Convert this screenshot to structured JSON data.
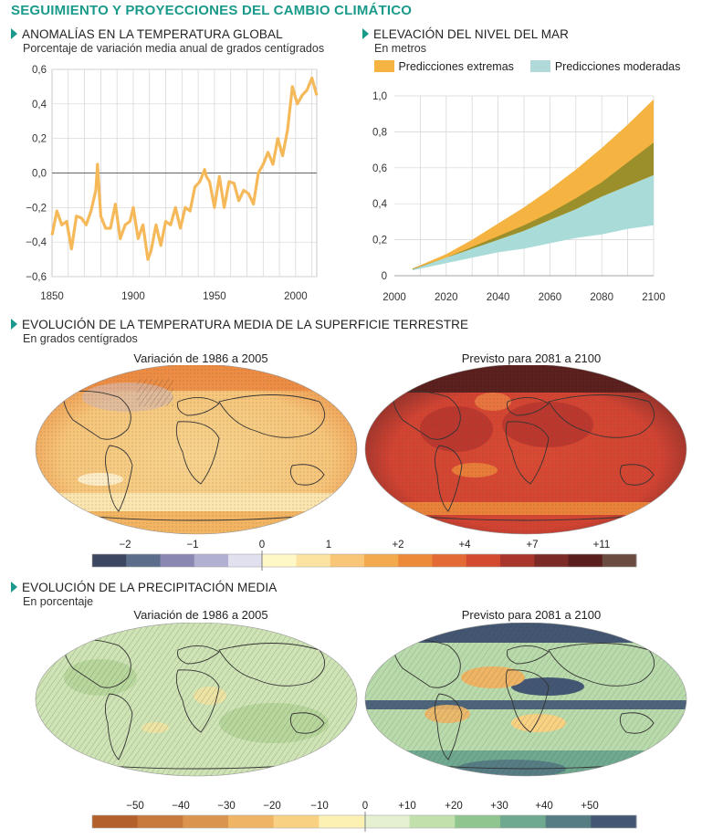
{
  "header": {
    "title": "SEGUIMIENTO Y PROYECCIONES DEL CAMBIO CLIMÁTICO"
  },
  "sections": {
    "temp_global": {
      "title": "ANOMALÍAS EN LA TEMPERATURA GLOBAL",
      "subtitle": "Porcentaje de variación media anual de grados centígrados"
    },
    "sea_level": {
      "title": "ELEVACIÓN DEL NIVEL DEL MAR",
      "subtitle": "En metros"
    },
    "surface_temp": {
      "title": "EVOLUCIÓN DE LA TEMPERATURA MEDIA DE LA SUPERFICIE TERRESTRE",
      "subtitle": "En grados centígrados",
      "map_left_title": "Variación de 1986 a 2005",
      "map_right_title": "Previsto para 2081 a 2100"
    },
    "precip": {
      "title": "EVOLUCIÓN DE LA PRECIPITACIÓN MEDIA",
      "subtitle": "En porcentaje",
      "map_left_title": "Variación de 1986 a 2005",
      "map_right_title": "Previsto para 2081 a 2100"
    }
  },
  "colors": {
    "accent": "#1a9a8a",
    "temp_line": "#f5b95a",
    "extreme": "#f5b342",
    "moderate": "#a9dcd9",
    "overlap": "#9a8f2a"
  },
  "chart_data": [
    {
      "id": "temp_anomalies",
      "type": "line",
      "xlim": [
        1850,
        2013
      ],
      "ylim": [
        -0.6,
        0.6
      ],
      "xticks": [
        "1850",
        "1900",
        "1950",
        "2000"
      ],
      "yticks": [
        "0,6",
        "0,4",
        "0,2",
        "0,0",
        "−0,2",
        "−0,4",
        "−0,6"
      ],
      "grid": true,
      "series": [
        {
          "x": [
            1850,
            1853,
            1856,
            1859,
            1862,
            1865,
            1868,
            1871,
            1874,
            1877,
            1878,
            1880,
            1883,
            1886,
            1889,
            1892,
            1895,
            1898,
            1900,
            1903,
            1906,
            1909,
            1911,
            1914,
            1917,
            1920,
            1923,
            1926,
            1929,
            1932,
            1935,
            1938,
            1941,
            1944,
            1945,
            1947,
            1950,
            1953,
            1956,
            1959,
            1962,
            1965,
            1968,
            1971,
            1974,
            1977,
            1980,
            1983,
            1986,
            1989,
            1992,
            1995,
            1998,
            2001,
            2004,
            2007,
            2010,
            2013
          ],
          "y": [
            -0.36,
            -0.22,
            -0.3,
            -0.28,
            -0.44,
            -0.25,
            -0.26,
            -0.3,
            -0.22,
            -0.1,
            0.05,
            -0.25,
            -0.32,
            -0.32,
            -0.18,
            -0.38,
            -0.3,
            -0.28,
            -0.2,
            -0.38,
            -0.3,
            -0.5,
            -0.45,
            -0.3,
            -0.42,
            -0.28,
            -0.3,
            -0.2,
            -0.32,
            -0.2,
            -0.22,
            -0.08,
            -0.05,
            0.02,
            -0.02,
            -0.05,
            -0.2,
            -0.02,
            -0.2,
            -0.05,
            -0.06,
            -0.16,
            -0.1,
            -0.12,
            -0.18,
            0.0,
            0.05,
            0.12,
            0.05,
            0.2,
            0.1,
            0.25,
            0.5,
            0.4,
            0.45,
            0.48,
            0.55,
            0.45
          ]
        }
      ]
    },
    {
      "id": "sea_level",
      "type": "area",
      "xlim": [
        2000,
        2100
      ],
      "ylim": [
        0,
        1.0
      ],
      "xticks": [
        "2000",
        "2020",
        "2040",
        "2060",
        "2080",
        "2100"
      ],
      "yticks": [
        "1,0",
        "0,8",
        "0,6",
        "0,4",
        "0,2",
        "0"
      ],
      "grid": true,
      "legend": {
        "position": "top",
        "entries": [
          "Predicciones extremas",
          "Predicciones moderadas"
        ]
      },
      "series": [
        {
          "name": "Predicciones extremas",
          "x": [
            2007,
            2020,
            2030,
            2040,
            2050,
            2060,
            2070,
            2080,
            2090,
            2100
          ],
          "low": [
            0.035,
            0.1,
            0.15,
            0.2,
            0.25,
            0.31,
            0.37,
            0.44,
            0.5,
            0.56
          ],
          "high": [
            0.04,
            0.12,
            0.2,
            0.29,
            0.38,
            0.48,
            0.59,
            0.71,
            0.84,
            0.98
          ]
        },
        {
          "name": "Predicciones moderadas",
          "x": [
            2007,
            2020,
            2030,
            2040,
            2050,
            2060,
            2070,
            2080,
            2090,
            2100
          ],
          "low": [
            0.03,
            0.07,
            0.1,
            0.13,
            0.15,
            0.18,
            0.21,
            0.23,
            0.26,
            0.28
          ],
          "high": [
            0.038,
            0.1,
            0.16,
            0.22,
            0.28,
            0.35,
            0.43,
            0.52,
            0.63,
            0.74
          ]
        }
      ]
    },
    {
      "id": "temp_scale",
      "type": "heatmap",
      "labels": [
        "−2",
        "−1",
        "0",
        "1",
        "+2",
        "+4",
        "+7",
        "+11"
      ],
      "colors": [
        "#3d4660",
        "#5b6d8a",
        "#8a88b2",
        "#b1b0d2",
        "#e0e0ee",
        "#fef8c6",
        "#fde3a2",
        "#f9c677",
        "#f3aa4c",
        "#ec8a3a",
        "#e36a35",
        "#d44a30",
        "#a9362c",
        "#7c2a26",
        "#5a1f1d",
        "#6b4a40"
      ]
    },
    {
      "id": "precip_scale",
      "type": "heatmap",
      "labels": [
        "−50",
        "−40",
        "−30",
        "−20",
        "−10",
        "0",
        "+10",
        "+20",
        "+30",
        "+40",
        "+50"
      ],
      "colors": [
        "#b4602a",
        "#c87a3d",
        "#db9450",
        "#efb565",
        "#f8d183",
        "#fdf0b3",
        "#e4f0d0",
        "#c2e0ab",
        "#91c58f",
        "#6fa98f",
        "#567c84",
        "#435774"
      ]
    }
  ]
}
